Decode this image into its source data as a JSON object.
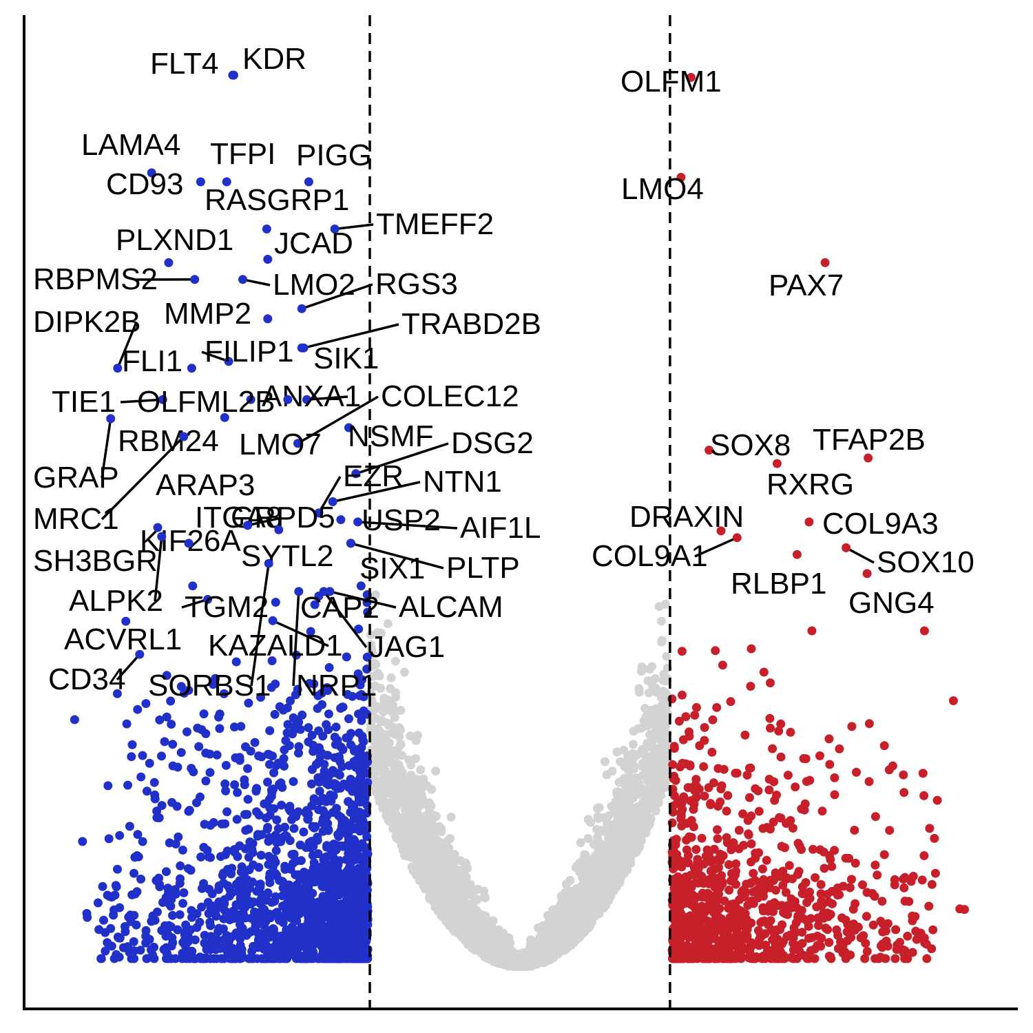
{
  "chart_data": {
    "type": "scatter",
    "title": "",
    "xlabel": "",
    "ylabel": "",
    "xlim": [
      -3.5,
      6.4
    ],
    "ylim": [
      0,
      83
    ],
    "grid": false,
    "legend": "none",
    "thresholds": {
      "x": [
        0,
        3
      ]
    },
    "colors": {
      "down": "#2130C8",
      "up": "#C8202A",
      "ns": "#D3D3D2",
      "axis": "#000000"
    },
    "labeled_points": [
      {
        "gene": "KDR",
        "x": -1.37,
        "y": 79.5,
        "group": "down"
      },
      {
        "gene": "FLT4",
        "x": -1.36,
        "y": 79.5,
        "group": "down"
      },
      {
        "gene": "LAMA4",
        "x": -2.18,
        "y": 70.8,
        "group": "down"
      },
      {
        "gene": "CD93",
        "x": -1.69,
        "y": 70.0,
        "group": "down"
      },
      {
        "gene": "TFPI",
        "x": -1.43,
        "y": 70.0,
        "group": "down"
      },
      {
        "gene": "PIGG",
        "x": -0.61,
        "y": 70.0,
        "group": "down"
      },
      {
        "gene": "RASGRP1",
        "x": -1.03,
        "y": 65.8,
        "group": "down"
      },
      {
        "gene": "TMEFF2",
        "x": -0.35,
        "y": 65.8,
        "group": "down"
      },
      {
        "gene": "PLXND1",
        "x": -2.01,
        "y": 62.8,
        "group": "down"
      },
      {
        "gene": "JCAD",
        "x": -1.02,
        "y": 63.1,
        "group": "down"
      },
      {
        "gene": "RBPMS2",
        "x": -1.75,
        "y": 61.3,
        "group": "down"
      },
      {
        "gene": "LMO2",
        "x": -1.27,
        "y": 61.3,
        "group": "down"
      },
      {
        "gene": "RGS3",
        "x": -0.68,
        "y": 58.7,
        "group": "down"
      },
      {
        "gene": "MMP2",
        "x": -1.02,
        "y": 57.8,
        "group": "down"
      },
      {
        "gene": "TRABD2B",
        "x": -0.66,
        "y": 55.2,
        "group": "down"
      },
      {
        "gene": "DIPK2B",
        "x": -2.52,
        "y": 53.4,
        "group": "down"
      },
      {
        "gene": "FILIP1",
        "x": -1.41,
        "y": 54.0,
        "group": "down"
      },
      {
        "gene": "SIK1",
        "x": -0.68,
        "y": 55.2,
        "group": "down"
      },
      {
        "gene": "FLI1",
        "x": -1.78,
        "y": 53.4,
        "group": "down"
      },
      {
        "gene": "ANXA1",
        "x": -0.63,
        "y": 50.6,
        "group": "down"
      },
      {
        "gene": "TIE1",
        "x": -2.07,
        "y": 50.6,
        "group": "down"
      },
      {
        "gene": "OLFML2B",
        "x": -1.19,
        "y": 50.6,
        "group": "down"
      },
      {
        "gene": "COLEC12",
        "x": -0.72,
        "y": 46.7,
        "group": "down"
      },
      {
        "gene": "NSMF",
        "x": -0.21,
        "y": 48.1,
        "group": "down"
      },
      {
        "gene": "RBM24",
        "x": -1.45,
        "y": 49.0,
        "group": "down"
      },
      {
        "gene": "LMO7",
        "x": -0.82,
        "y": 50.6,
        "group": "down"
      },
      {
        "gene": "GRAP",
        "x": -2.59,
        "y": 48.9,
        "group": "down"
      },
      {
        "gene": "DSG2",
        "x": -0.14,
        "y": 44.0,
        "group": "down"
      },
      {
        "gene": "EZR",
        "x": -0.51,
        "y": 40.5,
        "group": "down"
      },
      {
        "gene": "NTN1",
        "x": -0.37,
        "y": 41.5,
        "group": "down"
      },
      {
        "gene": "ARAP3",
        "x": -1.86,
        "y": 47.3,
        "group": "down"
      },
      {
        "gene": "MRC1",
        "x": -1.86,
        "y": 47.3,
        "group": "down"
      },
      {
        "gene": "GRPD5",
        "x": -0.51,
        "y": 40.5,
        "group": "down"
      },
      {
        "gene": "USP2",
        "x": -0.29,
        "y": 39.9,
        "group": "down"
      },
      {
        "gene": "AIF1L",
        "x": -0.12,
        "y": 39.7,
        "group": "down"
      },
      {
        "gene": "ITGA8",
        "x": -1.22,
        "y": 39.4,
        "group": "down"
      },
      {
        "gene": "KIF26A",
        "x": -1.22,
        "y": 39.4,
        "group": "down"
      },
      {
        "gene": "SH3BGR",
        "x": -2.12,
        "y": 39.2,
        "group": "down"
      },
      {
        "gene": "SYTL2",
        "x": -0.91,
        "y": 39.0,
        "group": "down"
      },
      {
        "gene": "SIX1",
        "x": -0.19,
        "y": 37.8,
        "group": "down"
      },
      {
        "gene": "PLTP",
        "x": -0.19,
        "y": 37.8,
        "group": "down"
      },
      {
        "gene": "ALPK2",
        "x": -2.08,
        "y": 38.4,
        "group": "down"
      },
      {
        "gene": "TGM2",
        "x": -1.62,
        "y": 32.8,
        "group": "down"
      },
      {
        "gene": "CAP2",
        "x": -0.51,
        "y": 33.1,
        "group": "down"
      },
      {
        "gene": "ALCAM",
        "x": -0.4,
        "y": 33.5,
        "group": "down"
      },
      {
        "gene": "ACVRL1",
        "x": -1.81,
        "y": 37.8,
        "group": "down"
      },
      {
        "gene": "KAZALD1",
        "x": -0.97,
        "y": 30.9,
        "group": "down"
      },
      {
        "gene": "JAG1",
        "x": -0.46,
        "y": 33.5,
        "group": "down"
      },
      {
        "gene": "CD34",
        "x": -2.3,
        "y": 27.9,
        "group": "down"
      },
      {
        "gene": "SORBS1",
        "x": -1.01,
        "y": 36.0,
        "group": "down"
      },
      {
        "gene": "NRP1",
        "x": -0.71,
        "y": 33.5,
        "group": "down"
      },
      {
        "gene": "OLFM1",
        "x": 3.21,
        "y": 79.3,
        "group": "up"
      },
      {
        "gene": "LMO4",
        "x": 3.11,
        "y": 70.4,
        "group": "up"
      },
      {
        "gene": "PAX7",
        "x": 4.55,
        "y": 62.8,
        "group": "up"
      },
      {
        "gene": "SOX8",
        "x": 3.39,
        "y": 46.1,
        "group": "up"
      },
      {
        "gene": "TFAP2B",
        "x": 4.98,
        "y": 45.4,
        "group": "up"
      },
      {
        "gene": "RXRG",
        "x": 4.07,
        "y": 44.9,
        "group": "up"
      },
      {
        "gene": "DRAXIN",
        "x": 3.51,
        "y": 38.9,
        "group": "up"
      },
      {
        "gene": "COL9A3",
        "x": 4.39,
        "y": 39.7,
        "group": "up"
      },
      {
        "gene": "COL9A1",
        "x": 3.67,
        "y": 38.3,
        "group": "up"
      },
      {
        "gene": "SOX10",
        "x": 4.76,
        "y": 37.4,
        "group": "up"
      },
      {
        "gene": "RLBP1",
        "x": 4.27,
        "y": 36.8,
        "group": "up"
      },
      {
        "gene": "GNG4",
        "x": 4.97,
        "y": 35.1,
        "group": "up"
      }
    ]
  }
}
